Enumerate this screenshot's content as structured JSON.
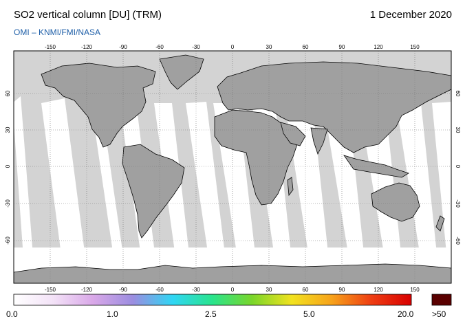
{
  "header": {
    "title": "SO2 vertical column [DU] (TRM)",
    "date": "1 December 2020",
    "credit": "OMI  –  KNMI/FMI/NASA"
  },
  "map": {
    "lon_ticks": [
      "-150",
      "-120",
      "-90",
      "-60",
      "-30",
      "0",
      "30",
      "60",
      "90",
      "120",
      "150"
    ],
    "lat_ticks": [
      "60",
      "30",
      "0",
      "-30",
      "-60"
    ],
    "colors": {
      "background_no_data": "#d3d3d3",
      "land": "#a0a0a0",
      "ocean_data": "#ffffff",
      "coastline": "#000000",
      "graticule": "#777777"
    }
  },
  "colorbar": {
    "labels": [
      "0.0",
      "1.0",
      "2.5",
      "5.0",
      "20.0",
      ">50"
    ],
    "stops": [
      "#ffffff",
      "#f3e2f7",
      "#d9a8e8",
      "#9b8de0",
      "#2fd6f4",
      "#29e48c",
      "#7ad62a",
      "#f2e21f",
      "#f7a21a",
      "#ee3d12",
      "#d80000"
    ],
    "overflow_color": "#5a0000"
  }
}
